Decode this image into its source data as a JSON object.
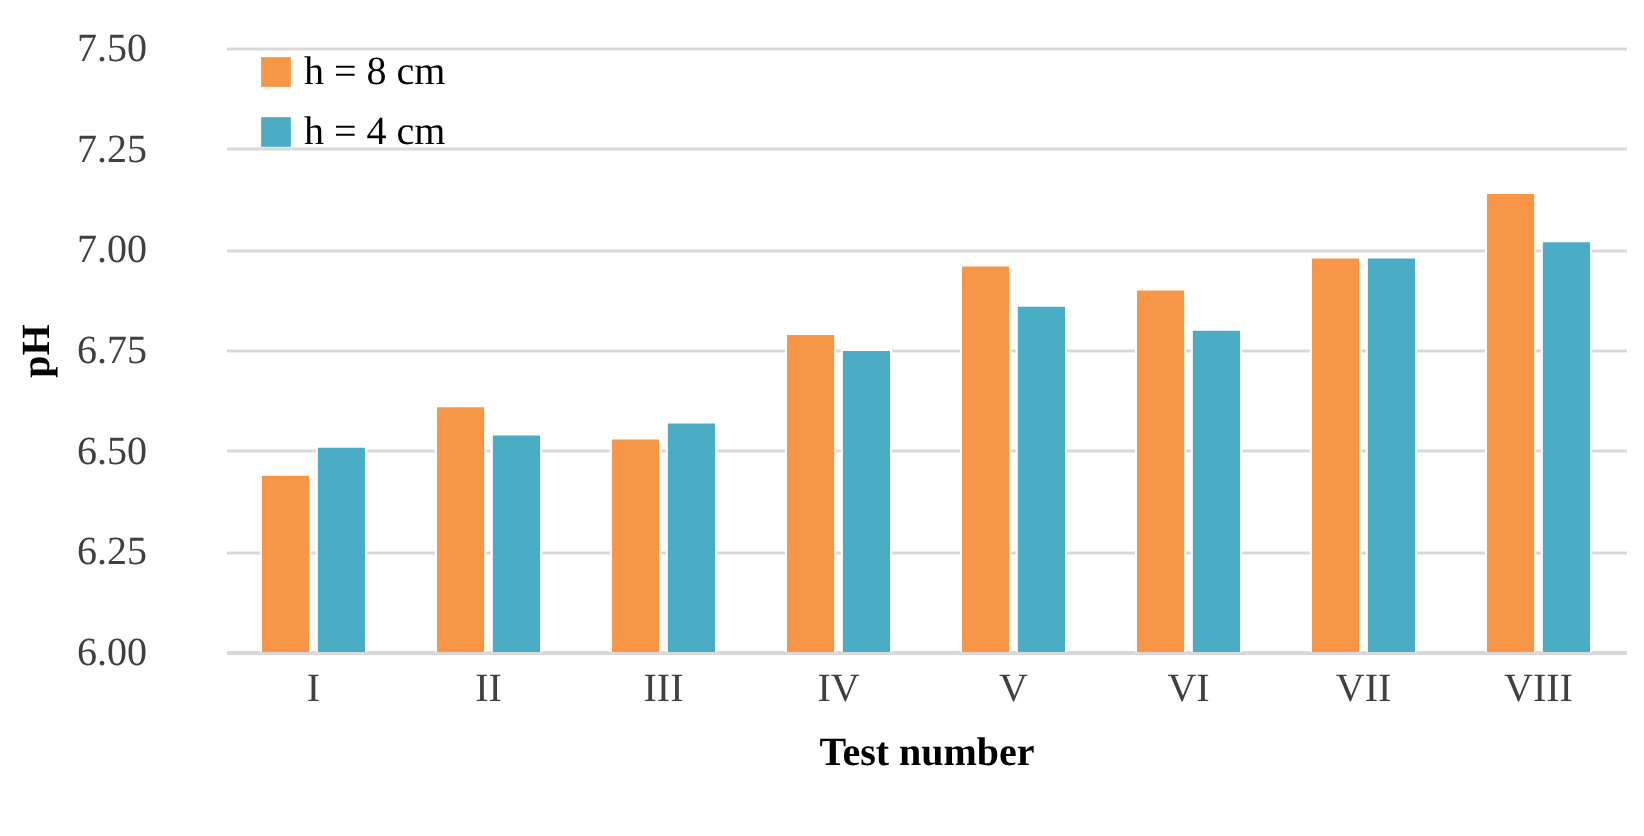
{
  "chart_data": {
    "type": "bar",
    "xlabel": "Test number",
    "ylabel": "pH",
    "categories": [
      "I",
      "II",
      "III",
      "IV",
      "V",
      "VI",
      "VII",
      "VIII"
    ],
    "series": [
      {
        "name": "h = 8 cm",
        "color": "#f79646",
        "values": [
          6.44,
          6.61,
          6.53,
          6.79,
          6.96,
          6.9,
          6.98,
          7.14
        ]
      },
      {
        "name": "h = 4 cm",
        "color": "#4bacc6",
        "values": [
          6.51,
          6.54,
          6.57,
          6.75,
          6.86,
          6.8,
          6.98,
          7.02
        ]
      }
    ],
    "ylim": [
      6.0,
      7.5
    ],
    "yticks": [
      {
        "value": 6.0,
        "label": "6.00"
      },
      {
        "value": 6.25,
        "label": "6.25"
      },
      {
        "value": 6.5,
        "label": "6.50"
      },
      {
        "value": 6.75,
        "label": "6.75"
      },
      {
        "value": 7.0,
        "label": "7.00"
      },
      {
        "value": 7.25,
        "label": "7.25"
      },
      {
        "value": 7.5,
        "label": "7.50"
      }
    ],
    "grid": "y",
    "legend": "top left"
  }
}
